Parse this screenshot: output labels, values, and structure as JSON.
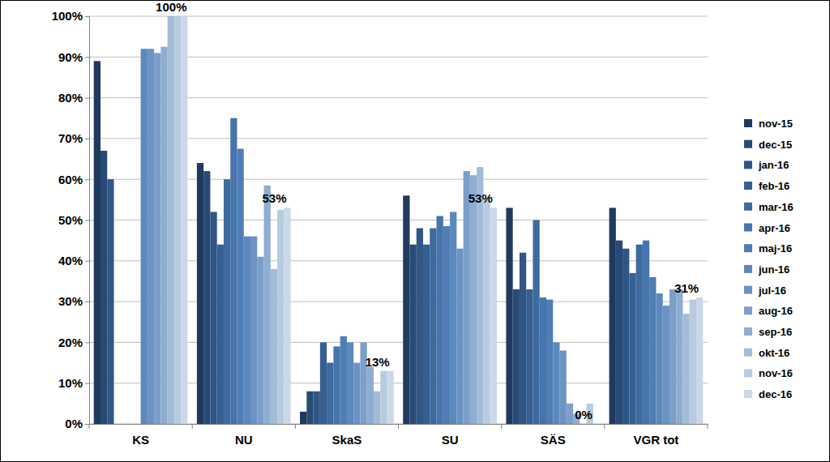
{
  "chart_data": {
    "type": "bar",
    "categories": [
      "KS",
      "NU",
      "SkaS",
      "SU",
      "SÄS",
      "VGR tot"
    ],
    "series": [
      {
        "name": "nov-15",
        "color": "#1f3a5f",
        "values": [
          89,
          64,
          3,
          56,
          53,
          53
        ]
      },
      {
        "name": "dec-15",
        "color": "#284a74",
        "values": [
          67,
          62,
          8,
          44,
          33,
          45
        ]
      },
      {
        "name": "jan-16",
        "color": "#2f5685",
        "values": [
          60,
          52,
          8,
          48,
          42,
          43
        ]
      },
      {
        "name": "feb-16",
        "color": "#365f92",
        "values": [
          null,
          44,
          20,
          44,
          33,
          37
        ]
      },
      {
        "name": "mar-16",
        "color": "#3d6a9f",
        "values": [
          null,
          60,
          15,
          48,
          50,
          44
        ]
      },
      {
        "name": "apr-16",
        "color": "#4674ab",
        "values": [
          null,
          75,
          19,
          51,
          31,
          45
        ]
      },
      {
        "name": "maj-16",
        "color": "#4f7db5",
        "values": [
          null,
          67.5,
          21.5,
          48.5,
          30.5,
          36
        ]
      },
      {
        "name": "jun-16",
        "color": "#5c88bd",
        "values": [
          92,
          46,
          20,
          52,
          20,
          32
        ]
      },
      {
        "name": "jul-16",
        "color": "#6b93c3",
        "values": [
          92,
          46,
          15,
          43,
          18,
          29
        ]
      },
      {
        "name": "aug-16",
        "color": "#7c9fc9",
        "values": [
          91,
          41,
          20,
          62,
          5,
          33
        ]
      },
      {
        "name": "sep-16",
        "color": "#8eadd0",
        "values": [
          92.5,
          58.5,
          14,
          61,
          2.5,
          33
        ]
      },
      {
        "name": "okt-16",
        "color": "#a2bcd8",
        "values": [
          100,
          38,
          8,
          63,
          0,
          27
        ]
      },
      {
        "name": "nov-16",
        "color": "#b7cbe1",
        "values": [
          100,
          52.5,
          13,
          55,
          5,
          30.5
        ]
      },
      {
        "name": "dec-16",
        "color": "#cbd8ea",
        "values": [
          100,
          53,
          13,
          53,
          0,
          31
        ],
        "data_labels": true,
        "value_labels": [
          "100%",
          "53%",
          "13%",
          "53%",
          "0%",
          "31%"
        ]
      }
    ],
    "ylim": [
      0,
      100
    ],
    "yticks": [
      {
        "value": 0,
        "label": "0%"
      },
      {
        "value": 10,
        "label": "10%"
      },
      {
        "value": 20,
        "label": "20%"
      },
      {
        "value": 30,
        "label": "30%"
      },
      {
        "value": 40,
        "label": "40%"
      },
      {
        "value": 50,
        "label": "50%"
      },
      {
        "value": 60,
        "label": "60%"
      },
      {
        "value": 70,
        "label": "70%"
      },
      {
        "value": 80,
        "label": "80%"
      },
      {
        "value": 90,
        "label": "90%"
      },
      {
        "value": 100,
        "label": "100%"
      }
    ],
    "grid": true,
    "legend": "right"
  }
}
